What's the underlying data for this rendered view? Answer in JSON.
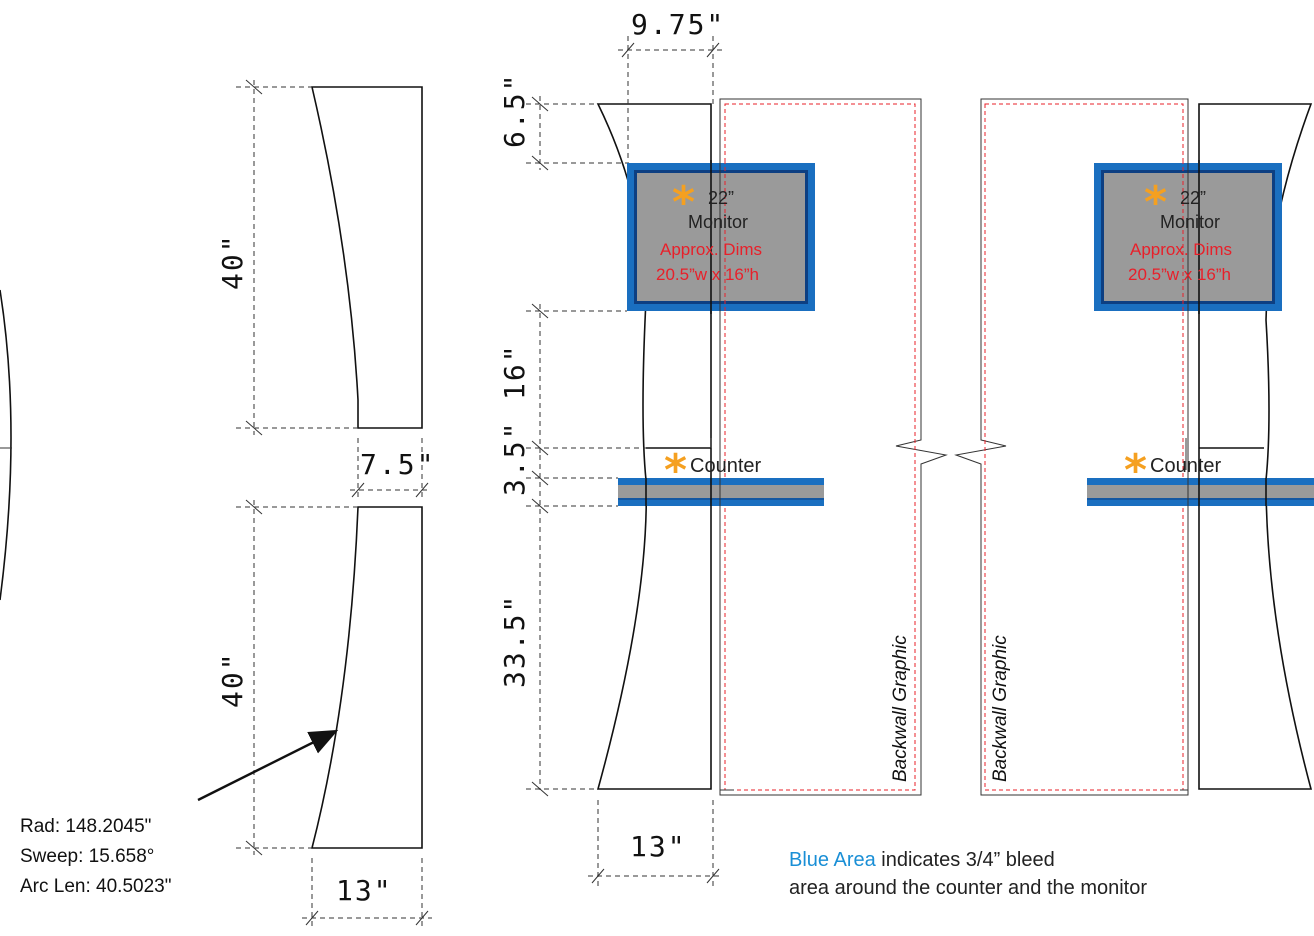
{
  "dimensions": {
    "top_width": "9.75\"",
    "top_gap": "6.5\"",
    "mid_gap": "16\"",
    "counter_gap": "3.5\"",
    "lower_height": "33.5\"",
    "bottom_width": "13\"",
    "left_upper_height": "40\"",
    "left_lower_height": "40\"",
    "left_mid_width": "7.5\"",
    "left_bottom_width": "13\""
  },
  "monitor": {
    "size": "22”",
    "label": "Monitor",
    "approx": "Approx. Dims",
    "dims": "20.5”w x 16”h"
  },
  "counter": {
    "label": "Counter"
  },
  "star_glyph": "*",
  "backwall": {
    "label": "Backwall Graphic"
  },
  "arc_callout": {
    "rad": "Rad: 148.2045\"",
    "sweep": "Sweep: 15.658°",
    "arc_len": "Arc Len: 40.5023\""
  },
  "note": {
    "blue_part": "Blue Area",
    "line1_rest": " indicates 3/4” bleed",
    "line2": "area around the counter and the monitor"
  },
  "colors": {
    "bleed_blue": "#1a6fc0",
    "monitor_gray": "#9a9a9a",
    "star_orange": "#f5a020",
    "trim_red": "#e8202a"
  }
}
